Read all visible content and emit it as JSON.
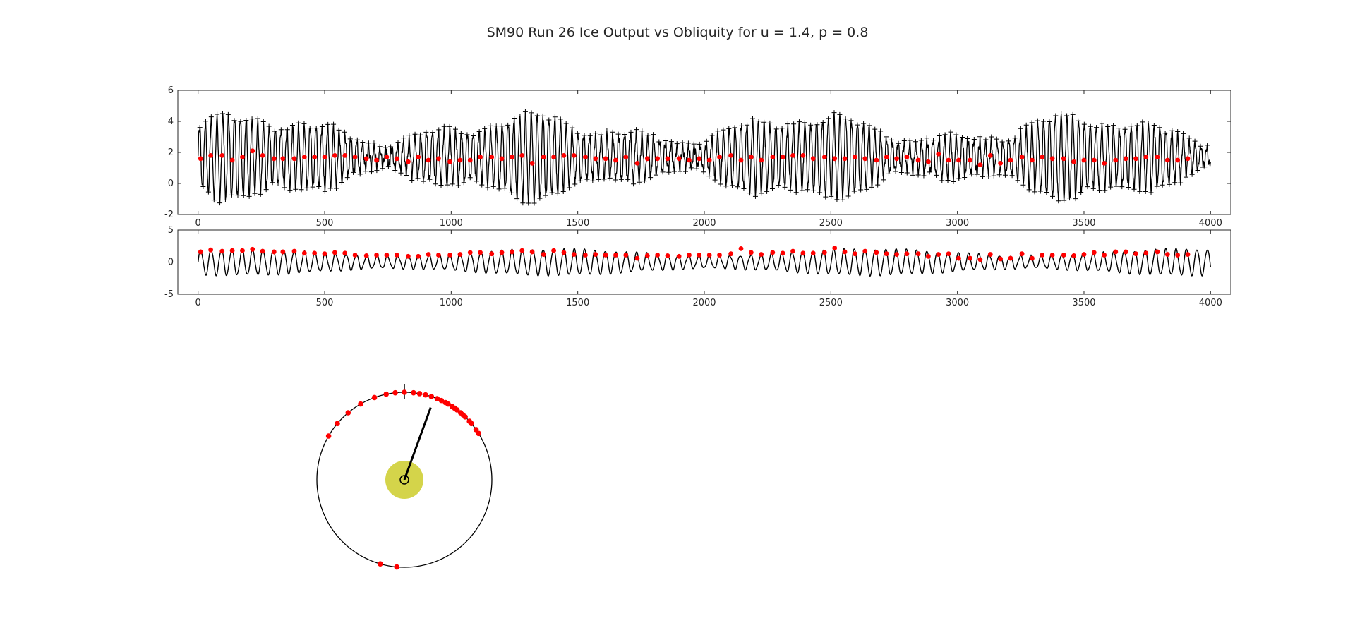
{
  "title": "SM90 Run 26 Ice Output vs Obliquity for u = 1.4, p = 0.8",
  "chart_data": [
    {
      "type": "line",
      "panel": "top",
      "series_color": "#000000",
      "marker_color": "#ff0000",
      "xlim": [
        -80,
        4080
      ],
      "ylim": [
        -2,
        6
      ],
      "xticks": [
        0,
        500,
        1000,
        1500,
        2000,
        2500,
        3000,
        3500,
        4000
      ],
      "yticks": [
        -2,
        0,
        2,
        4,
        6
      ],
      "x_tick_labels": [
        "0",
        "500",
        "1000",
        "1500",
        "2000",
        "2500",
        "3000",
        "3500",
        "4000"
      ],
      "y_tick_labels": [
        "-2",
        "0",
        "2",
        "4",
        "6"
      ],
      "series": [
        {
          "type": "line",
          "mean": 1.7,
          "period": 23,
          "amplitude": 1.6,
          "x_range": [
            0,
            4000
          ]
        },
        {
          "type": "scatter",
          "marker": "+",
          "description": "peaks and troughs of the black curve"
        },
        {
          "type": "scatter",
          "marker": "dot",
          "x": [
            10,
            50,
            95,
            135,
            175,
            215,
            255,
            300,
            335,
            380,
            420,
            460,
            500,
            540,
            580,
            620,
            665,
            705,
            745,
            785,
            830,
            870,
            910,
            950,
            995,
            1035,
            1075,
            1115,
            1160,
            1200,
            1240,
            1280,
            1320,
            1365,
            1405,
            1445,
            1485,
            1530,
            1570,
            1610,
            1650,
            1690,
            1735,
            1775,
            1815,
            1855,
            1900,
            1940,
            1980,
            2020,
            2060,
            2105,
            2145,
            2185,
            2225,
            2270,
            2310,
            2350,
            2390,
            2430,
            2475,
            2515,
            2555,
            2595,
            2635,
            2680,
            2720,
            2760,
            2800,
            2845,
            2885,
            2925,
            2965,
            3005,
            3050,
            3090,
            3130,
            3170,
            3210,
            3255,
            3295,
            3335,
            3375,
            3420,
            3460,
            3500,
            3540,
            3580,
            3625,
            3665,
            3705,
            3745,
            3790,
            3830,
            3870,
            3910
          ],
          "y": [
            1.6,
            1.8,
            1.8,
            1.5,
            1.7,
            2.1,
            1.8,
            1.6,
            1.6,
            1.6,
            1.7,
            1.7,
            1.7,
            1.8,
            1.8,
            1.7,
            1.6,
            1.5,
            1.7,
            1.6,
            1.4,
            1.7,
            1.5,
            1.6,
            1.4,
            1.5,
            1.5,
            1.7,
            1.7,
            1.6,
            1.7,
            1.8,
            1.3,
            1.7,
            1.7,
            1.8,
            1.8,
            1.7,
            1.6,
            1.6,
            1.5,
            1.7,
            1.3,
            1.6,
            1.6,
            1.6,
            1.6,
            1.5,
            1.6,
            1.5,
            1.7,
            1.8,
            1.5,
            1.7,
            1.5,
            1.7,
            1.7,
            1.8,
            1.8,
            1.6,
            1.7,
            1.6,
            1.6,
            1.7,
            1.6,
            1.5,
            1.7,
            1.6,
            1.7,
            1.5,
            1.4,
            1.9,
            1.5,
            1.5,
            1.5,
            1.2,
            1.8,
            1.3,
            1.5,
            1.7,
            1.5,
            1.7,
            1.6,
            1.6,
            1.4,
            1.5,
            1.5,
            1.3,
            1.5,
            1.6,
            1.6,
            1.7,
            1.7,
            1.5,
            1.5,
            1.6
          ]
        }
      ]
    },
    {
      "type": "line",
      "panel": "middle",
      "series_color": "#000000",
      "marker_color": "#ff0000",
      "xlim": [
        -80,
        4080
      ],
      "ylim": [
        -5,
        5
      ],
      "xticks": [
        0,
        500,
        1000,
        1500,
        2000,
        2500,
        3000,
        3500,
        4000
      ],
      "yticks": [
        -5,
        0,
        5
      ],
      "x_tick_labels": [
        "0",
        "500",
        "1000",
        "1500",
        "2000",
        "2500",
        "3000",
        "3500",
        "4000"
      ],
      "y_tick_labels": [
        "-5",
        "0",
        "5"
      ],
      "series": [
        {
          "type": "line",
          "mean": 0,
          "period": 41,
          "amplitude": 1.5,
          "x_range": [
            0,
            4000
          ]
        },
        {
          "type": "scatter",
          "marker": "dot",
          "x": [
            10,
            50,
            95,
            135,
            175,
            215,
            255,
            300,
            335,
            380,
            420,
            460,
            500,
            540,
            580,
            620,
            665,
            705,
            745,
            785,
            830,
            870,
            910,
            950,
            995,
            1035,
            1075,
            1115,
            1160,
            1200,
            1240,
            1280,
            1320,
            1365,
            1405,
            1445,
            1485,
            1530,
            1570,
            1610,
            1650,
            1690,
            1735,
            1775,
            1815,
            1855,
            1900,
            1940,
            1980,
            2020,
            2060,
            2105,
            2145,
            2185,
            2225,
            2270,
            2310,
            2350,
            2390,
            2430,
            2475,
            2515,
            2555,
            2595,
            2635,
            2680,
            2720,
            2760,
            2800,
            2845,
            2885,
            2925,
            2965,
            3005,
            3050,
            3090,
            3130,
            3170,
            3210,
            3255,
            3295,
            3335,
            3375,
            3420,
            3460,
            3500,
            3540,
            3580,
            3625,
            3665,
            3705,
            3745,
            3790,
            3830,
            3870,
            3910
          ],
          "y": [
            1.6,
            1.9,
            1.7,
            1.8,
            1.8,
            2.0,
            1.7,
            1.6,
            1.6,
            1.7,
            1.4,
            1.4,
            1.3,
            1.5,
            1.4,
            1.1,
            1.0,
            1.1,
            1.1,
            1.1,
            0.9,
            0.9,
            1.2,
            1.1,
            1.1,
            1.2,
            1.5,
            1.5,
            1.3,
            1.5,
            1.6,
            1.8,
            1.6,
            1.2,
            1.8,
            1.5,
            1.2,
            1.1,
            1.2,
            1.1,
            1.1,
            1.1,
            0.6,
            1.0,
            1.1,
            1.0,
            0.9,
            1.1,
            1.1,
            1.1,
            1.1,
            1.3,
            2.1,
            1.5,
            1.2,
            1.5,
            1.4,
            1.7,
            1.4,
            1.4,
            1.5,
            2.2,
            1.6,
            1.3,
            1.7,
            1.5,
            1.3,
            1.2,
            1.3,
            1.3,
            0.9,
            1.2,
            1.3,
            0.6,
            0.6,
            0.4,
            1.2,
            0.5,
            0.6,
            1.3,
            0.6,
            1.1,
            1.1,
            1.1,
            1.0,
            1.2,
            1.5,
            1.1,
            1.6,
            1.6,
            1.3,
            1.4,
            1.6,
            1.2,
            1.1,
            1.2
          ]
        }
      ]
    },
    {
      "type": "polar",
      "panel": "circle",
      "circle_color": "#000000",
      "marker_color": "#ff0000",
      "sun_color": "#d4d44a",
      "pointer_angle_deg": 20,
      "tick_angle_deg": 0,
      "marker_angles_deg": [
        -60,
        -50,
        -40,
        -30,
        -20,
        -12,
        -6,
        0,
        6,
        10,
        14,
        18,
        22,
        25,
        28,
        30,
        33,
        35,
        37,
        40,
        42,
        44,
        48,
        50,
        55,
        58,
        196,
        185
      ]
    }
  ]
}
